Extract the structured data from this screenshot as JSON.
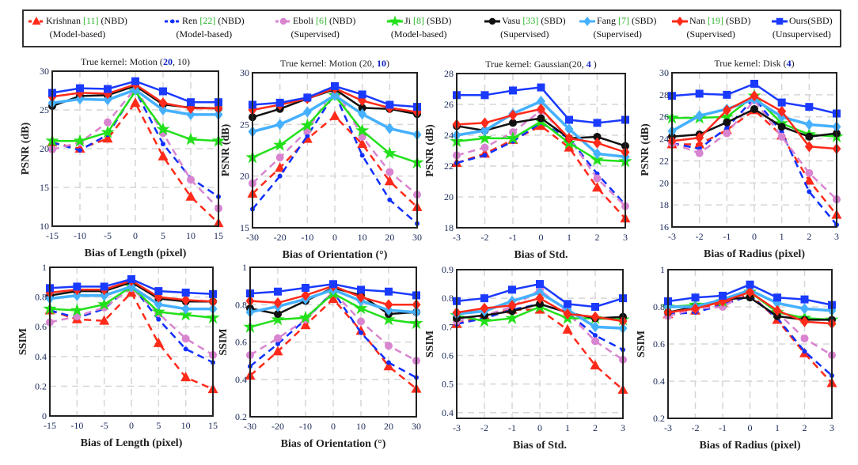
{
  "legend": [
    {
      "name": "Krishnan ",
      "ref": "[11]",
      "tag": " (NBD)",
      "sub": "(Model-based)",
      "color": "#ff2a1a",
      "marker": "triangle",
      "dashed": true
    },
    {
      "name": "Ren ",
      "ref": "[22]",
      "tag": " (NBD)",
      "sub": "(Model-based)",
      "color": "#1030ff",
      "marker": "dot",
      "dashed": true
    },
    {
      "name": "Eboli ",
      "ref": "[6]",
      "tag": " (NBD)",
      "sub": "(Supervised)",
      "color": "#d884d0",
      "marker": "circle",
      "dashed": true
    },
    {
      "name": "Ji ",
      "ref": "[8]",
      "tag": " (SBD)",
      "sub": "(Model-based)",
      "color": "#22e01a",
      "marker": "star",
      "dashed": false
    },
    {
      "name": "Vasu ",
      "ref": "[33]",
      "tag": " (SBD)",
      "sub": "(Supervised)",
      "color": "#111111",
      "marker": "circle",
      "dashed": false
    },
    {
      "name": "Fang ",
      "ref": "[7]",
      "tag": " (SBD)",
      "sub": "(Supervised)",
      "color": "#45b0ff",
      "marker": "diamond",
      "dashed": false
    },
    {
      "name": "Nan ",
      "ref": "[19]",
      "tag": " (SBD)",
      "sub": "(Supervised)",
      "color": "#ff2a1a",
      "marker": "diamond",
      "dashed": false
    },
    {
      "name": "Ours",
      "ref": "",
      "tag": "(SBD)",
      "sub": "(Unsupervised)",
      "color": "#1a3aff",
      "marker": "square",
      "dashed": false
    }
  ],
  "chart_data": [
    {
      "type": "line",
      "title_parts": [
        "True kernel: Motion (",
        "20",
        ", 10)"
      ],
      "xlabel": "Bias of Length (pixel)",
      "ylabel": "PSNR (dB)",
      "x": [
        -15,
        -10,
        -5,
        0,
        5,
        10,
        15
      ],
      "xlim": [
        -15,
        15
      ],
      "ylim": [
        10,
        30
      ],
      "yticks": [
        10,
        15,
        20,
        25,
        30
      ],
      "grid": true,
      "series": [
        [
          20.8,
          20,
          21.3,
          25.9,
          19,
          13.8,
          10.4
        ],
        [
          20.8,
          19.8,
          21.8,
          27.5,
          20.6,
          16.2,
          13.8
        ],
        [
          19.9,
          20.8,
          23.4,
          27.8,
          22,
          16,
          12.3
        ],
        [
          21,
          21,
          22.1,
          27.4,
          22.5,
          21.2,
          21
        ],
        [
          25.5,
          26.8,
          26.9,
          28.1,
          25.7,
          25.3,
          25.2
        ],
        [
          25.9,
          26.4,
          26.3,
          27.6,
          25,
          24.4,
          24.4
        ],
        [
          26.7,
          27.2,
          27.1,
          28.3,
          25.9,
          25.2,
          25.2
        ],
        [
          27.2,
          27.8,
          27.7,
          28.7,
          27.4,
          26,
          26
        ]
      ]
    },
    {
      "type": "line",
      "title_parts": [
        "True kernel: Motion (20, ",
        "10",
        ")"
      ],
      "xlabel": "Bias of Orientation (°)",
      "ylabel": "PSNR (dB)",
      "x": [
        -30,
        -20,
        -10,
        0,
        10,
        20,
        30
      ],
      "xlim": [
        -30,
        30
      ],
      "ylim": [
        15,
        30
      ],
      "yticks": [
        15,
        20,
        25,
        30
      ],
      "grid": true,
      "series": [
        [
          18.3,
          20.8,
          23.6,
          25.8,
          23.1,
          19.5,
          17
        ],
        [
          16.8,
          20,
          23.9,
          28,
          22,
          17.7,
          15.4
        ],
        [
          19.3,
          21.8,
          24.4,
          28.6,
          23.8,
          20.4,
          18.2
        ],
        [
          21.8,
          23,
          24.9,
          27.8,
          24.4,
          22.2,
          21.3
        ],
        [
          25.7,
          26.5,
          27.5,
          28.4,
          26.6,
          26.5,
          26
        ],
        [
          24.3,
          25,
          26.2,
          27.8,
          26,
          24.6,
          24
        ],
        [
          26.4,
          26.9,
          27.5,
          28.5,
          27.3,
          26.6,
          26.2
        ],
        [
          26.9,
          27.1,
          27.6,
          28.7,
          27.9,
          26.9,
          26.7
        ]
      ]
    },
    {
      "type": "line",
      "title_parts": [
        "True kernel: Gaussian(20, ",
        "4",
        " )"
      ],
      "xlabel": "Bias of Std.",
      "ylabel": "PSNR (dB)",
      "x": [
        -3,
        -2,
        -1,
        0,
        1,
        2,
        3
      ],
      "xlim": [
        -3,
        3
      ],
      "ylim": [
        18,
        28
      ],
      "yticks": [
        18,
        20,
        22,
        24,
        26,
        28
      ],
      "grid": true,
      "series": [
        [
          22.2,
          22.8,
          23.7,
          24.6,
          23.2,
          20.6,
          18.6
        ],
        [
          22.2,
          22.7,
          23.6,
          24.8,
          23.8,
          21.5,
          19.5
        ],
        [
          22.7,
          23.2,
          24.2,
          25.6,
          23.8,
          21.2,
          19.4
        ],
        [
          23.6,
          23.8,
          23.8,
          24.9,
          23.5,
          22.4,
          22.3
        ],
        [
          24.6,
          24.3,
          24.8,
          25.1,
          23.8,
          23.9,
          23.3
        ],
        [
          24,
          24.3,
          25.4,
          26.2,
          24.4,
          22.8,
          22.6
        ],
        [
          24.7,
          24.8,
          25.3,
          25.7,
          23.8,
          23.5,
          22.9
        ],
        [
          26.6,
          26.6,
          26.9,
          27.1,
          25,
          24.8,
          25
        ]
      ]
    },
    {
      "type": "line",
      "title_parts": [
        "True kernel: Disk (",
        "4",
        ")"
      ],
      "xlabel": "Bias of Radius (pixel)",
      "ylabel": "PSNR (dB)",
      "x": [
        -3,
        -2,
        -1,
        0,
        1,
        2,
        3
      ],
      "xlim": [
        -3,
        3
      ],
      "ylim": [
        16,
        30
      ],
      "yticks": [
        16,
        18,
        20,
        22,
        24,
        26,
        28,
        30
      ],
      "grid": true,
      "series": [
        [
          23.5,
          23.5,
          24.8,
          26.6,
          24.3,
          20.2,
          17.1
        ],
        [
          23.6,
          23.1,
          25,
          27.7,
          24.6,
          19.2,
          16.2
        ],
        [
          23.6,
          22.7,
          24.5,
          27.5,
          24.2,
          20.9,
          18.5
        ],
        [
          25.9,
          25.9,
          26,
          27.9,
          25.4,
          24.4,
          24.2
        ],
        [
          24.2,
          24.4,
          25.5,
          26.7,
          25.1,
          24.2,
          24.5
        ],
        [
          24.7,
          26.1,
          26.7,
          27.6,
          26,
          25.3,
          25.1
        ],
        [
          23.8,
          24.1,
          26.6,
          27.9,
          26.5,
          23.3,
          23.1
        ],
        [
          27.9,
          28.1,
          28,
          29,
          27.3,
          26.9,
          26.3
        ]
      ]
    },
    {
      "type": "line",
      "title_parts": [],
      "xlabel": "Bias of Length (pixel)",
      "ylabel": "SSIM",
      "x": [
        -15,
        -10,
        -5,
        0,
        5,
        10,
        15
      ],
      "xlim": [
        -15,
        15
      ],
      "ylim": [
        0,
        1
      ],
      "yticks": [
        0,
        0.2,
        0.4,
        0.6,
        0.8,
        1
      ],
      "grid": true,
      "series": [
        [
          0.71,
          0.65,
          0.64,
          0.83,
          0.49,
          0.26,
          0.18
        ],
        [
          0.71,
          0.66,
          0.72,
          0.88,
          0.65,
          0.45,
          0.36
        ],
        [
          0.63,
          0.67,
          0.73,
          0.86,
          0.69,
          0.52,
          0.41
        ],
        [
          0.72,
          0.71,
          0.75,
          0.87,
          0.7,
          0.68,
          0.66
        ],
        [
          0.81,
          0.84,
          0.84,
          0.9,
          0.79,
          0.77,
          0.77
        ],
        [
          0.79,
          0.81,
          0.81,
          0.87,
          0.75,
          0.72,
          0.72
        ],
        [
          0.83,
          0.85,
          0.85,
          0.91,
          0.8,
          0.78,
          0.77
        ],
        [
          0.86,
          0.87,
          0.87,
          0.92,
          0.84,
          0.83,
          0.82
        ]
      ]
    },
    {
      "type": "line",
      "title_parts": [],
      "xlabel": "Bias of Orientation (°)",
      "ylabel": "SSIM",
      "x": [
        -30,
        -20,
        -10,
        0,
        10,
        20,
        30
      ],
      "xlim": [
        -30,
        30
      ],
      "ylim": [
        0.2,
        1
      ],
      "yticks": [
        0.2,
        0.4,
        0.6,
        0.8,
        1
      ],
      "grid": true,
      "series": [
        [
          0.42,
          0.55,
          0.69,
          0.83,
          0.66,
          0.47,
          0.35
        ],
        [
          0.47,
          0.59,
          0.72,
          0.87,
          0.65,
          0.49,
          0.41
        ],
        [
          0.53,
          0.62,
          0.72,
          0.87,
          0.71,
          0.58,
          0.5
        ],
        [
          0.68,
          0.72,
          0.73,
          0.86,
          0.78,
          0.72,
          0.7
        ],
        [
          0.78,
          0.75,
          0.82,
          0.89,
          0.85,
          0.75,
          0.76
        ],
        [
          0.76,
          0.79,
          0.83,
          0.88,
          0.82,
          0.77,
          0.76
        ],
        [
          0.82,
          0.81,
          0.85,
          0.9,
          0.84,
          0.8,
          0.8
        ],
        [
          0.86,
          0.87,
          0.89,
          0.91,
          0.88,
          0.87,
          0.85
        ]
      ]
    },
    {
      "type": "line",
      "title_parts": [],
      "xlabel": "Bias of Std.",
      "ylabel": "SSIM",
      "x": [
        -3,
        -2,
        -1,
        0,
        1,
        2,
        3
      ],
      "xlim": [
        -3,
        3
      ],
      "ylim": [
        0.38,
        0.9
      ],
      "yticks": [
        0.4,
        0.5,
        0.6,
        0.7,
        0.8,
        0.9
      ],
      "grid": true,
      "series": [
        [
          0.71,
          0.74,
          0.76,
          0.76,
          0.69,
          0.565,
          0.48
        ],
        [
          0.71,
          0.73,
          0.76,
          0.78,
          0.75,
          0.67,
          0.62
        ],
        [
          0.72,
          0.74,
          0.77,
          0.83,
          0.75,
          0.65,
          0.585
        ],
        [
          0.74,
          0.72,
          0.73,
          0.77,
          0.73,
          0.73,
          0.725
        ],
        [
          0.73,
          0.74,
          0.755,
          0.78,
          0.75,
          0.73,
          0.735
        ],
        [
          0.745,
          0.755,
          0.79,
          0.82,
          0.76,
          0.7,
          0.695
        ],
        [
          0.75,
          0.765,
          0.775,
          0.8,
          0.745,
          0.735,
          0.72
        ],
        [
          0.79,
          0.8,
          0.83,
          0.85,
          0.78,
          0.77,
          0.8
        ]
      ]
    },
    {
      "type": "line",
      "title_parts": [],
      "xlabel": "Bias of Radius (pixel)",
      "ylabel": "SSIM",
      "x": [
        -3,
        -2,
        -1,
        0,
        1,
        2,
        3
      ],
      "xlim": [
        -3,
        3
      ],
      "ylim": [
        0.2,
        1
      ],
      "yticks": [
        0.2,
        0.4,
        0.6,
        0.8,
        1
      ],
      "grid": true,
      "series": [
        [
          0.76,
          0.78,
          0.82,
          0.87,
          0.73,
          0.55,
          0.39
        ],
        [
          0.76,
          0.77,
          0.81,
          0.86,
          0.74,
          0.56,
          0.43
        ],
        [
          0.75,
          0.79,
          0.8,
          0.88,
          0.77,
          0.63,
          0.54
        ],
        [
          0.8,
          0.81,
          0.83,
          0.88,
          0.77,
          0.74,
          0.73
        ],
        [
          0.77,
          0.8,
          0.84,
          0.85,
          0.75,
          0.73,
          0.73
        ],
        [
          0.8,
          0.8,
          0.84,
          0.89,
          0.82,
          0.79,
          0.78
        ],
        [
          0.77,
          0.79,
          0.83,
          0.88,
          0.78,
          0.72,
          0.71
        ],
        [
          0.83,
          0.85,
          0.86,
          0.92,
          0.85,
          0.84,
          0.81
        ]
      ]
    }
  ]
}
